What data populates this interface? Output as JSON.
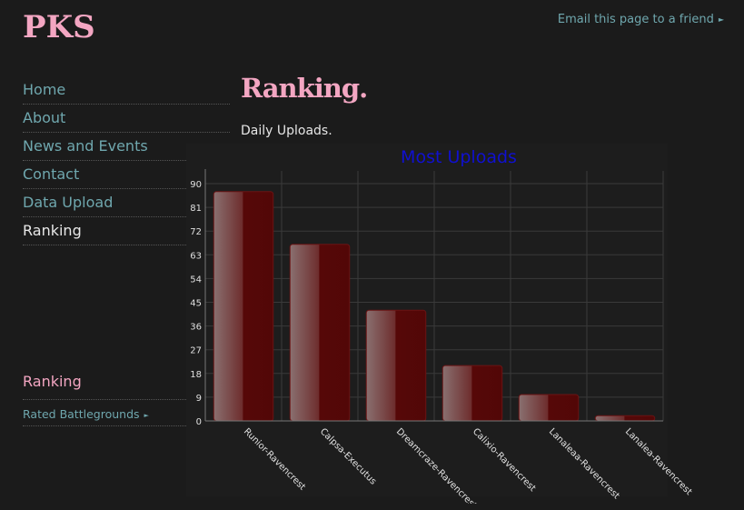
{
  "site": {
    "logo": "PKS",
    "email_link": "Email this page to a friend"
  },
  "nav": {
    "items": [
      {
        "label": "Home"
      },
      {
        "label": "About"
      },
      {
        "label": "News and Events"
      },
      {
        "label": "Contact"
      },
      {
        "label": "Data Upload"
      },
      {
        "label": "Ranking"
      }
    ]
  },
  "sidebar": {
    "title": "Ranking",
    "link": "Rated Battlegrounds"
  },
  "main": {
    "title": "Ranking.",
    "subtitle": "Daily Uploads."
  },
  "colors": {
    "accent": "#f3a6c2",
    "link": "#6fa7ae",
    "bar": "#5a0a0a",
    "chart_title": "#1010d0"
  },
  "chart_data": {
    "type": "bar",
    "title": "Most Uploads",
    "categories": [
      "Runior-Ravencrest",
      "Calpsa-Executus",
      "Dreamcraze-Ravencrest",
      "Calixio-Ravencrest",
      "Lanaleaa-Ravencrest",
      "Lanalea-Ravencrest"
    ],
    "values": [
      87,
      67,
      42,
      21,
      10,
      2
    ],
    "ylim": [
      0,
      90
    ],
    "yticks": [
      0,
      9,
      18,
      27,
      36,
      45,
      54,
      63,
      72,
      81,
      90
    ],
    "grid": true,
    "xlabel": "",
    "ylabel": ""
  }
}
